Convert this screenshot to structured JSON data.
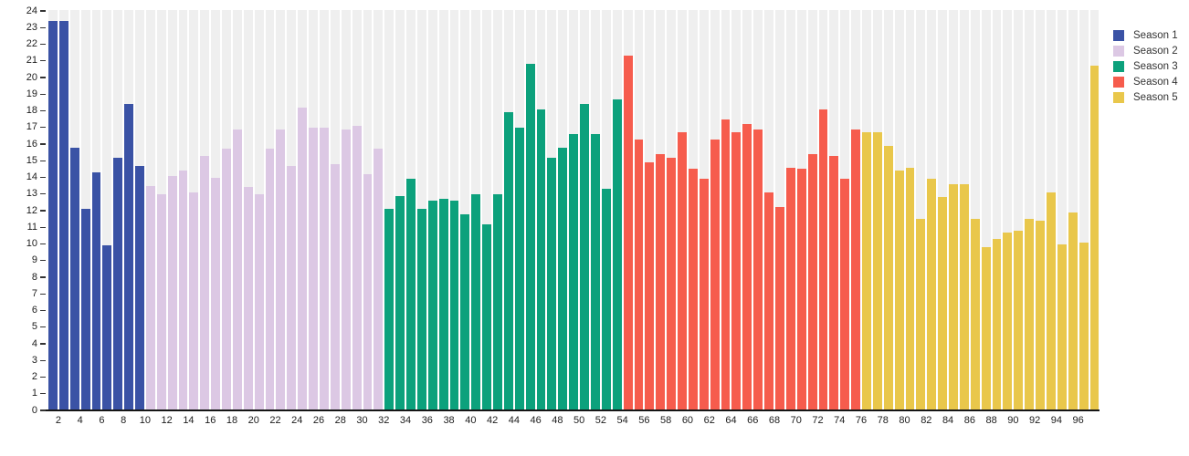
{
  "chart_data": {
    "type": "bar",
    "title": "",
    "xlabel": "",
    "ylabel": "",
    "ylim": [
      0,
      24
    ],
    "grid": "striped-column-background",
    "legend_position": "top-right",
    "y_ticks": [
      0,
      1,
      2,
      3,
      4,
      5,
      6,
      7,
      8,
      9,
      10,
      11,
      12,
      13,
      14,
      15,
      16,
      17,
      18,
      19,
      20,
      21,
      22,
      23,
      24
    ],
    "x_tick_labels": [
      2,
      4,
      6,
      8,
      10,
      12,
      14,
      16,
      18,
      20,
      22,
      24,
      26,
      28,
      30,
      32,
      34,
      36,
      38,
      40,
      42,
      44,
      46,
      48,
      50,
      52,
      54,
      56,
      58,
      60,
      62,
      64,
      66,
      68,
      70,
      72,
      74,
      76,
      78,
      80,
      82,
      84,
      86,
      88,
      90,
      92,
      94,
      96
    ],
    "series": [
      {
        "name": "Season 1",
        "color": "#3a52a5",
        "first_episode": 1,
        "values": [
          23.4,
          23.4,
          15.8,
          12.1,
          14.3,
          9.9,
          15.2,
          18.4,
          14.7
        ]
      },
      {
        "name": "Season 2",
        "color": "#dcc8e4",
        "first_episode": 10,
        "values": [
          13.5,
          13.0,
          14.1,
          14.4,
          13.1,
          15.3,
          14.0,
          15.7,
          16.9,
          13.4,
          13.0,
          15.7,
          16.9,
          14.7,
          18.2,
          17.0,
          17.0,
          14.8,
          16.9,
          17.1,
          14.2,
          15.7
        ]
      },
      {
        "name": "Season 3",
        "color": "#0ca17c",
        "first_episode": 32,
        "values": [
          12.1,
          12.9,
          13.9,
          12.1,
          12.6,
          12.7,
          12.6,
          11.8,
          13.0,
          11.2,
          13.0,
          17.9,
          17.0,
          20.8,
          18.1,
          15.2,
          15.8,
          16.6,
          18.4,
          16.6,
          13.3,
          18.7
        ]
      },
      {
        "name": "Season 4",
        "color": "#f65c4d",
        "first_episode": 54,
        "values": [
          21.3,
          16.3,
          14.9,
          15.4,
          15.2,
          16.7,
          14.5,
          13.9,
          16.3,
          17.5,
          16.7,
          17.2,
          16.9,
          13.1,
          12.2,
          14.6,
          14.5,
          15.4,
          18.1,
          15.3,
          13.9,
          16.9
        ]
      },
      {
        "name": "Season 5",
        "color": "#e9c74b",
        "first_episode": 76,
        "values": [
          16.7,
          16.7,
          15.9,
          14.4,
          14.6,
          11.5,
          13.9,
          12.8,
          13.6,
          13.6,
          11.5,
          9.8,
          10.3,
          10.7,
          10.8,
          11.5,
          11.4,
          13.1,
          10.0,
          11.9,
          10.1,
          20.7
        ]
      }
    ],
    "colors": {
      "column_stripe": "#efefef",
      "axis_line": "#161616",
      "tick_label": "#1c1c1c",
      "background": "#ffffff"
    }
  }
}
